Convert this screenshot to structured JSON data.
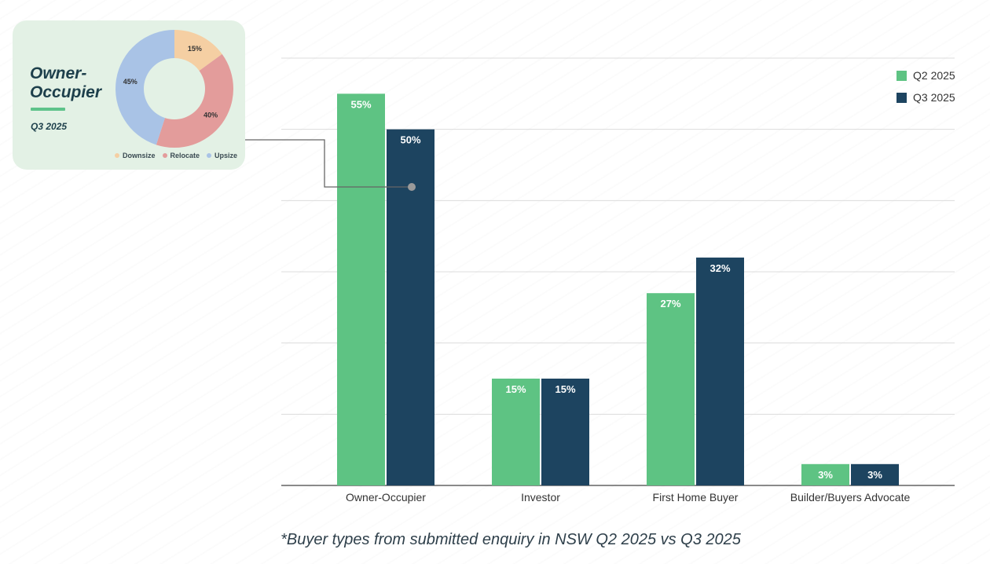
{
  "chart_data": [
    {
      "type": "bar",
      "categories": [
        "Owner-Occupier",
        "Investor",
        "First Home Buyer",
        "Builder/Buyers Advocate"
      ],
      "series": [
        {
          "name": "Q2 2025",
          "values": [
            55,
            15,
            27,
            3
          ],
          "color": "#5ec383"
        },
        {
          "name": "Q3 2025",
          "values": [
            50,
            15,
            32,
            3
          ],
          "color": "#1d4460"
        }
      ],
      "value_suffix": "%",
      "ylim": [
        0,
        60
      ],
      "grid": true,
      "legend_position": "top-right"
    },
    {
      "type": "pie",
      "title": "Owner-Occupier",
      "subtitle": "Q3 2025",
      "donut": true,
      "slices": [
        {
          "label": "Downsize",
          "value": 15,
          "color": "#f5cfa3"
        },
        {
          "label": "Relocate",
          "value": 40,
          "color": "#e39c9b"
        },
        {
          "label": "Upsize",
          "value": 45,
          "color": "#a9c3e6"
        }
      ],
      "value_suffix": "%",
      "legend_position": "bottom"
    }
  ],
  "callout": {
    "title": "Owner-Occupier",
    "title_line1": "Owner-",
    "title_line2": "Occupier",
    "period": "Q3 2025",
    "accent_color": "#5ec38a",
    "background_color": "#e3f1e5"
  },
  "footnote": "*Buyer types from submitted enquiry in NSW Q2 2025 vs Q3 2025"
}
